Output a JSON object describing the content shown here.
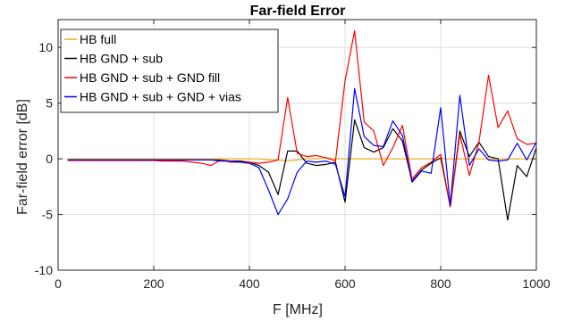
{
  "chart_data": {
    "type": "line",
    "title": "Far-field Error",
    "xlabel": "F [MHz]",
    "ylabel": "Far-field error [dB]",
    "xlim": [
      0,
      1000
    ],
    "ylim": [
      -10,
      12.5
    ],
    "xticks": [
      0,
      200,
      400,
      600,
      800,
      1000
    ],
    "yticks": [
      -10,
      -5,
      0,
      5,
      10
    ],
    "xtick_labels": [
      "0",
      "200",
      "400",
      "600",
      "800",
      "1000"
    ],
    "ytick_labels": [
      "-10",
      "-5",
      "0",
      "5",
      "10"
    ],
    "grid": true,
    "legend_position": "top-left",
    "x": [
      20,
      40,
      60,
      80,
      100,
      120,
      140,
      160,
      180,
      200,
      220,
      240,
      260,
      280,
      300,
      320,
      340,
      360,
      380,
      400,
      420,
      440,
      460,
      480,
      500,
      520,
      540,
      560,
      580,
      600,
      620,
      640,
      660,
      680,
      700,
      720,
      740,
      760,
      780,
      800,
      820,
      840,
      860,
      880,
      900,
      920,
      940,
      960,
      980,
      1000
    ],
    "series": [
      {
        "name": "HB full",
        "color": "#EDB120",
        "values": [
          0,
          0,
          0,
          0,
          0,
          0,
          0,
          0,
          0,
          0,
          0,
          0,
          0,
          0,
          0,
          0,
          0,
          0,
          0,
          0,
          0,
          -0.1,
          -0.1,
          -0.2,
          -0.1,
          0,
          0,
          0.1,
          0,
          0,
          0,
          0,
          0,
          0,
          0,
          0,
          0,
          0,
          0,
          0,
          0,
          0,
          0,
          0,
          0,
          0,
          0,
          0,
          0,
          0
        ]
      },
      {
        "name": "HB GND + sub",
        "color": "#000000",
        "values": [
          -0.1,
          -0.1,
          -0.1,
          -0.1,
          -0.1,
          -0.1,
          -0.1,
          -0.1,
          -0.1,
          -0.1,
          -0.1,
          -0.1,
          -0.1,
          -0.1,
          -0.1,
          -0.1,
          -0.1,
          -0.2,
          -0.2,
          -0.3,
          -0.6,
          -1.2,
          -3.2,
          0.7,
          0.7,
          -0.4,
          -0.6,
          -0.5,
          -0.3,
          -3.9,
          3.5,
          1.0,
          0.6,
          1.0,
          2.7,
          1.6,
          -2.0,
          -1.0,
          -0.4,
          0.1,
          -4.3,
          2.5,
          0.2,
          1.5,
          0.2,
          0,
          -5.5,
          -0.6,
          -1.6,
          1.0
        ]
      },
      {
        "name": "HB GND + sub + GND fill",
        "color": "#FF0000",
        "values": [
          -0.15,
          -0.15,
          -0.15,
          -0.15,
          -0.15,
          -0.15,
          -0.15,
          -0.15,
          -0.15,
          -0.15,
          -0.2,
          -0.2,
          -0.2,
          -0.3,
          -0.4,
          -0.6,
          -0.1,
          -0.3,
          -0.3,
          -0.3,
          -0.4,
          -0.3,
          -0.1,
          5.5,
          0.5,
          0.2,
          0.3,
          0.1,
          -0.2,
          7.0,
          11.5,
          3.3,
          2.5,
          -0.6,
          1.0,
          3.0,
          -1.8,
          -0.8,
          -0.3,
          0.4,
          -4.3,
          2.2,
          -1.5,
          1.5,
          7.5,
          2.8,
          4.3,
          1.8,
          1.3,
          1.4
        ]
      },
      {
        "name": "HB GND + sub + GND + vias",
        "color": "#0000FF",
        "values": [
          -0.1,
          -0.1,
          -0.1,
          -0.1,
          -0.1,
          -0.1,
          -0.1,
          -0.1,
          -0.1,
          -0.1,
          -0.1,
          -0.1,
          -0.1,
          -0.1,
          -0.1,
          -0.1,
          -0.2,
          -0.2,
          -0.3,
          -0.4,
          -0.8,
          -2.8,
          -5.0,
          -3.6,
          -1.2,
          -0.2,
          -0.3,
          -0.2,
          -0.5,
          -3.4,
          6.3,
          2.0,
          1.2,
          1.1,
          3.4,
          2.1,
          -2.1,
          -1.1,
          -1.3,
          4.6,
          -4.2,
          5.7,
          -0.6,
          0.9,
          -0.1,
          -0.2,
          -0.1,
          1.4,
          -0.1,
          1.5
        ]
      }
    ]
  }
}
